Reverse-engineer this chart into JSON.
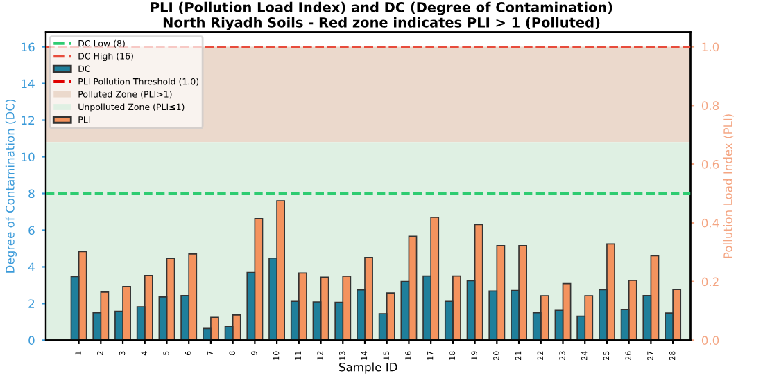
{
  "chart_data": {
    "type": "bar",
    "title": "PLI (Pollution Load Index) and DC (Degree of Contamination)\nNorth Riyadh Soils - Red zone indicates PLI > 1 (Polluted)",
    "xlabel": "Sample ID",
    "ylabel": "Degree of Contamination (DC)",
    "y2label": "Pollution Load Index (PLI)",
    "categories": [
      "1",
      "2",
      "3",
      "4",
      "5",
      "6",
      "7",
      "8",
      "9",
      "10",
      "11",
      "12",
      "13",
      "14",
      "15",
      "16",
      "17",
      "18",
      "19",
      "20",
      "21",
      "22",
      "23",
      "24",
      "25",
      "26",
      "27",
      "28"
    ],
    "series": [
      {
        "name": "DC",
        "color": "#1f7f9b",
        "values": [
          3.47,
          1.5,
          1.58,
          1.82,
          2.36,
          2.44,
          0.64,
          0.74,
          3.69,
          4.48,
          2.12,
          2.09,
          2.07,
          2.75,
          1.45,
          3.2,
          3.5,
          2.12,
          3.25,
          2.68,
          2.71,
          1.5,
          1.63,
          1.31,
          2.76,
          1.67,
          2.44,
          1.48
        ]
      },
      {
        "name": "PLI",
        "color": "#f4935e",
        "axis": "y2",
        "values": [
          0.302,
          0.164,
          0.183,
          0.221,
          0.279,
          0.294,
          0.078,
          0.086,
          0.414,
          0.475,
          0.229,
          0.215,
          0.218,
          0.282,
          0.161,
          0.354,
          0.419,
          0.219,
          0.394,
          0.322,
          0.322,
          0.152,
          0.193,
          0.152,
          0.328,
          0.204,
          0.288,
          0.173
        ]
      }
    ],
    "ylim": [
      0,
      16.8
    ],
    "yticks": [
      0,
      2,
      4,
      6,
      8,
      10,
      12,
      14,
      16
    ],
    "y2lim": [
      0,
      1.05
    ],
    "y2ticks": [
      {
        "value": 0,
        "label": "0.0"
      },
      0.2,
      0.4,
      0.6,
      0.8,
      {
        "value": 1,
        "label": "1.0"
      }
    ],
    "ref_lines": [
      {
        "axis": "y",
        "value": 8,
        "label": "DC Low (8)",
        "color": "#2ecc71",
        "line_style": "dashed"
      },
      {
        "axis": "y",
        "value": 16,
        "label": "DC High (16)",
        "color": "#e74c3c",
        "line_style": "dashed"
      },
      {
        "axis": "y2",
        "value": 1.0,
        "label": "PLI Pollution Threshold (1.0)",
        "color": "#e00000",
        "line_style": "dashed"
      }
    ],
    "bands": [
      {
        "axis": "y2",
        "from": 0.675,
        "to": 1.0,
        "label": "Polluted Zone (PLI>1)",
        "color": "#ebd9cc"
      },
      {
        "axis": "y2",
        "from": 0,
        "to": 0.675,
        "label": "Unpolluted Zone (PLI≤1)",
        "color": "#dff0e3"
      }
    ],
    "legend": "top left",
    "grid": false
  }
}
